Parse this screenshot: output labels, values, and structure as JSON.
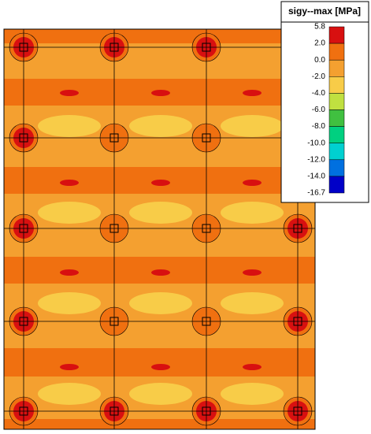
{
  "legend": {
    "title": "sigy--max [MPa]",
    "labels": [
      "5.8",
      "2.0",
      "0.0",
      "-2.0",
      "-4.0",
      "-6.0",
      "-8.0",
      "-10.0",
      "-12.0",
      "-14.0",
      "-16.7"
    ],
    "colors": [
      "#d81010",
      "#f07010",
      "#f4a030",
      "#f8cc48",
      "#c0e040",
      "#40c040",
      "#00d080",
      "#00d0d0",
      "#0070e0",
      "#0000c8"
    ]
  }
}
